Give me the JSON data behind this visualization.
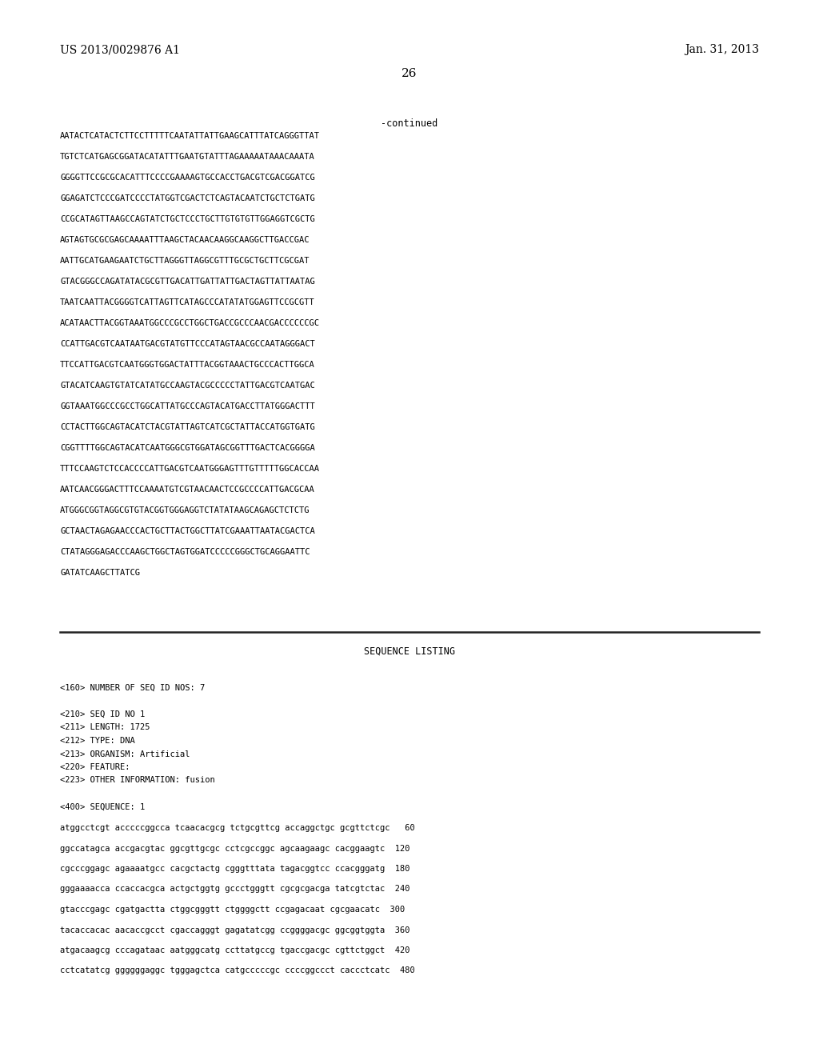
{
  "header_left": "US 2013/0029876 A1",
  "header_right": "Jan. 31, 2013",
  "page_number": "26",
  "continued_label": "-continued",
  "background_color": "#ffffff",
  "text_color": "#000000",
  "continued_lines": [
    "AATACTCATACTCTTCCTTTTTCAATATTATTGAAGCATTTATCAGGGTTAT",
    "TGTCTCATGAGCGGATACATATTTGAATGTATTTAGAAAAATAAACAAATA",
    "GGGGTTCCGCGCACATTTCCCCGAAAAGTGCCACCTGACGTCGACGGATCG",
    "GGAGATCTCCCGATCCCCTATGGTCGACTCTCAGTACAATCTGCTCTGATG",
    "CCGCATAGTTAAGCCAGTATCTGCTCCCTGCTTGTGTGTTGGAGGTCGCTG",
    "AGTAGTGCGCGAGCAAAATTTAAGCTACAACAAGGCAAGGCTTGACCGAC",
    "AATTGCATGAAGAATCTGCTTAGGGTTAGGCGTTTGCGCTGCTTCGCGAT",
    "GTACGGGCCAGATATACGCGTTGACATTGATTATTGACTAGTTATTAATAG",
    "TAATCAATTACGGGGTCATTAGTTCATAGCCCATATATGGAGTTCCGCGTT",
    "ACATAACTTACGGTAAATGGCCCGCCTGGCTGACCGCCCAACGACCCCCCGC",
    "CCATTGACGTCAATAATGACGTATGTTCCCATAGTAACGCCAATAGGGACT",
    "TTCCATTGACGTCAATGGGTGGACTATTTACGGTAAACTGCCCACTTGGCA",
    "GTACATCAAGTGTATCATATGCCAAGTACGCCCCCTATTGACGTCAATGAC",
    "GGTAAATGGCCCGCCTGGCATTATGCCCAGTACATGACCTTATGGGACTTT",
    "CCTACTTGGCAGTACATCTACGTATTAGTCATCGCTATTACCATGGTGATG",
    "CGGTTTTGGCAGTACATCAATGGGCGTGGATAGCGGTTTGACTCACGGGGA",
    "TTTCCAAGTCTCCACCCCATTGACGTCAATGGGAGTTTGTTTTTGGCACCAA",
    "AATCAACGGGACTTTCCAAAATGTCGTAACAACTCCGCCCCATTGACGCAA",
    "ATGGGCGGTAGGCGTGTACGGTGGGAGGTCTATATAAGCAGAGCTCTCTG",
    "GCTAACTAGAGAACCCACTGCTTACTGGCTTATCGAAATTAATACGACTCA",
    "CTATAGGGAGACCCAAGCTGGCTAGTGGATCCCCCGGGCTGCAGGAATTC",
    "GATATCAAGCTTATCG"
  ],
  "sequence_listing_title": "SEQUENCE LISTING",
  "seq_metadata_lines": [
    "<160> NUMBER OF SEQ ID NOS: 7",
    "",
    "<210> SEQ ID NO 1",
    "<211> LENGTH: 1725",
    "<212> TYPE: DNA",
    "<213> ORGANISM: Artificial",
    "<220> FEATURE:",
    "<223> OTHER INFORMATION: fusion",
    "",
    "<400> SEQUENCE: 1"
  ],
  "sequence_data_lines": [
    "atggcctcgt acccccggcca tcaacacgcg tctgcgttcg accaggctgc gcgttctcgc   60",
    "ggccatagca accgacgtac ggcgttgcgc cctcgccggc agcaagaagc cacggaagtc  120",
    "cgcccggagc agaaaatgcc cacgctactg cgggtttata tagacggtcc ccacgggatg  180",
    "gggaaaacca ccaccacgca actgctggtg gccctgggtt cgcgcgacga tatcgtctac  240",
    "gtacccgagc cgatgactta ctggcgggtt ctggggctt ccgagacaat cgcgaacatc  300",
    "tacaccacac aacaccgcct cgaccagggt gagatatcgg ccggggacgc ggcggtggta  360",
    "atgacaagcg cccagataac aatgggcatg ccttatgccg tgaccgacgc cgttctggct  420",
    "cctcatatcg ggggggaggc tgggagctca catgcccccgc ccccggccct caccctcatc  480"
  ]
}
